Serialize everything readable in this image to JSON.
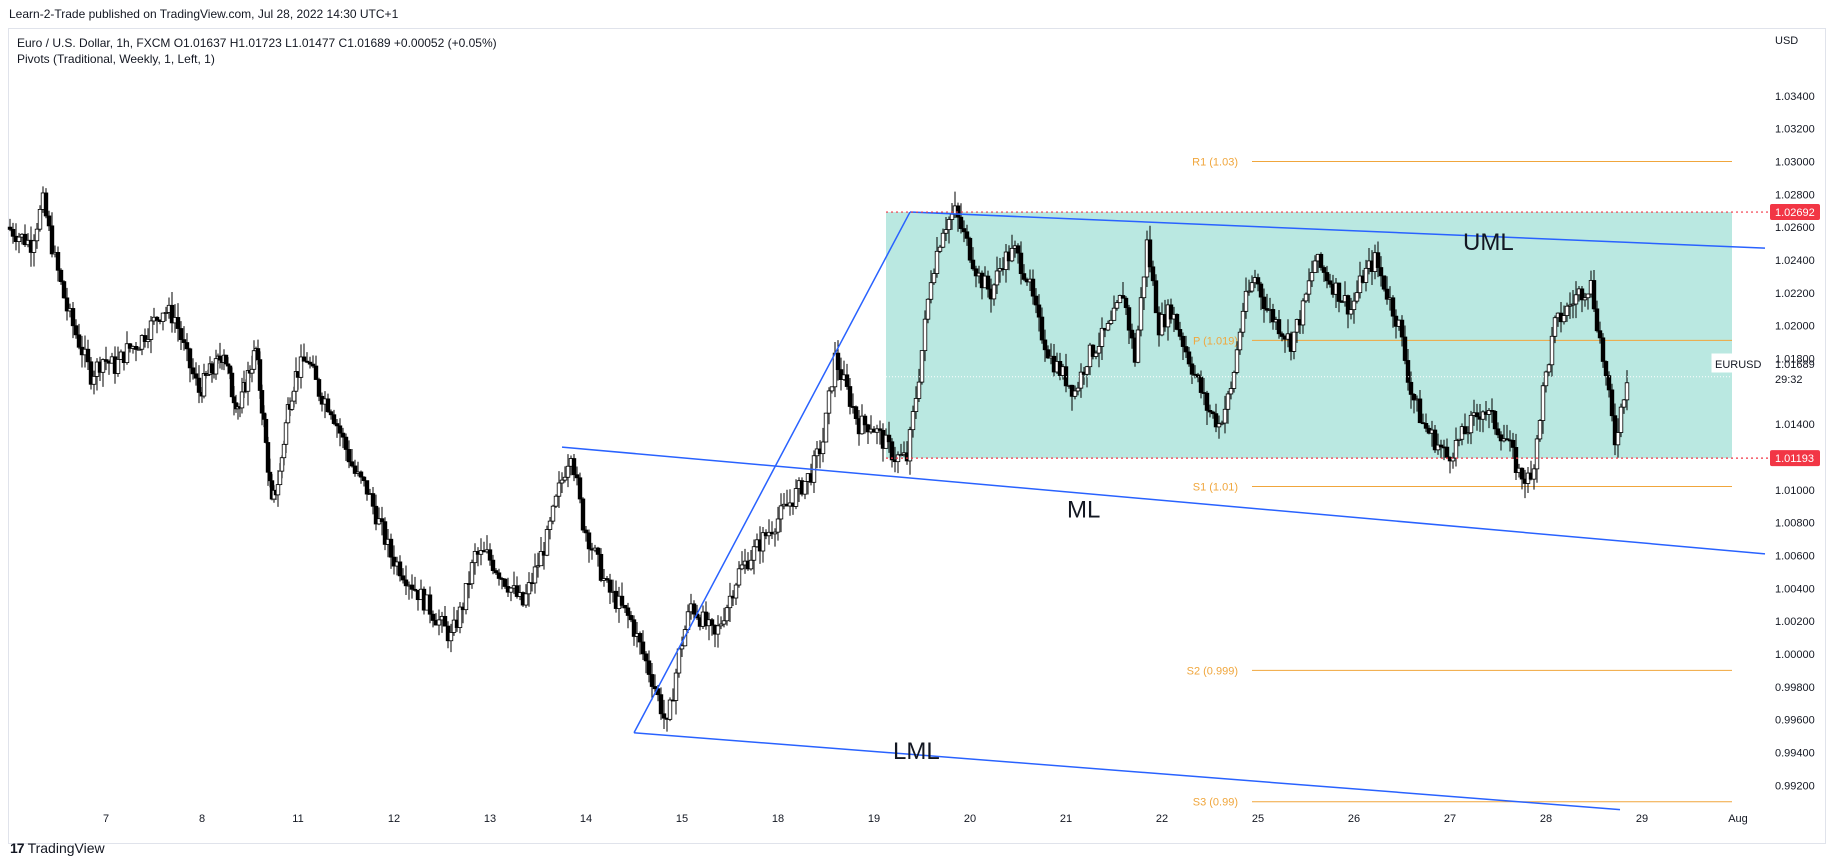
{
  "header": {
    "published": "Learn-2-Trade published on TradingView.com, Jul 28, 2022 14:30 UTC+1",
    "legend_line1": "Euro / U.S. Dollar, 1h, FXCM   O1.01637  H1.01723  L1.01477  C1.01689  +0.00052 (+0.05%)",
    "legend_line2": "Pivots (Traditional, Weekly, 1, Left, 1)",
    "brand": "TradingView"
  },
  "chart_data": {
    "type": "candlestick",
    "symbol": "EURUSD",
    "currency": "USD",
    "current_price": "1.01689",
    "countdown": "29:32",
    "ylim": [
      0.9908,
      1.0374
    ],
    "y_ticks": [
      "1.03400",
      "1.03200",
      "1.03000",
      "1.02800",
      "1.02600",
      "1.02400",
      "1.02200",
      "1.02000",
      "1.01800",
      "1.01400",
      "1.01000",
      "1.00800",
      "1.00600",
      "1.00400",
      "1.00200",
      "1.00000",
      "0.99800",
      "0.99600",
      "0.99400",
      "0.99200"
    ],
    "x_ticks": [
      "7",
      "8",
      "11",
      "12",
      "13",
      "14",
      "15",
      "18",
      "19",
      "20",
      "21",
      "22",
      "25",
      "26",
      "27",
      "28",
      "29",
      "Aug"
    ],
    "price_flags": [
      {
        "label": "1.02692",
        "value": 1.02692,
        "color": "#f23645"
      },
      {
        "label": "1.01193",
        "value": 1.01193,
        "color": "#f23645"
      }
    ],
    "pivots": [
      {
        "label": "R1 (1.03)",
        "value": 1.03
      },
      {
        "label": "P (1.019)",
        "value": 1.0191
      },
      {
        "label": "S1 (1.01)",
        "value": 1.0102
      },
      {
        "label": "S2 (0.999)",
        "value": 0.999
      },
      {
        "label": "S3 (0.99)",
        "value": 0.991
      }
    ],
    "channel_labels": [
      "UML",
      "ML",
      "LML"
    ],
    "range_box": {
      "top": 1.02692,
      "bottom": 1.01193,
      "from": "Jul 19",
      "to": "Jul 29",
      "color": "#b2e6de"
    },
    "colors": {
      "candle": "#000000",
      "pitchfork": "#2962ff",
      "pivot": "#f0a63c",
      "grid": "#f0f3fa"
    },
    "price_path": [
      {
        "d": "Jul 6",
        "v": [
          1.026,
          1.0255,
          1.025,
          1.0275
        ]
      },
      {
        "d": "Jul 6",
        "v": [
          1.024,
          1.021,
          1.019,
          1.017
        ]
      },
      {
        "d": "Jul 7",
        "v": [
          1.018,
          1.0175,
          1.0185,
          1.019
        ]
      },
      {
        "d": "Jul 7",
        "v": [
          1.02,
          1.021,
          1.0205,
          1.018
        ]
      },
      {
        "d": "Jul 8",
        "v": [
          1.016,
          1.017,
          1.0175,
          1.0185
        ]
      },
      {
        "d": "Jul 8",
        "v": [
          1.016,
          1.015,
          1.017,
          1.0185
        ]
      },
      {
        "d": "Jul 8",
        "v": [
          1.014,
          1.009,
          1.011,
          1.015
        ]
      },
      {
        "d": "Jul 11",
        "v": [
          1.017,
          1.018,
          1.016,
          1.015
        ]
      },
      {
        "d": "Jul 11",
        "v": [
          1.013,
          1.011,
          1.01,
          1.008
        ]
      },
      {
        "d": "Jul 12",
        "v": [
          1.006,
          1.005,
          1.004,
          1.003
        ]
      },
      {
        "d": "Jul 12",
        "v": [
          1.002,
          1.001,
          1.003,
          1.006
        ]
      },
      {
        "d": "Jul 13",
        "v": [
          1.006,
          1.005,
          1.004,
          1.003
        ]
      },
      {
        "d": "Jul 13",
        "v": [
          1.005,
          1.007,
          1.01,
          1.0125
        ]
      },
      {
        "d": "Jul 14",
        "v": [
          1.008,
          1.006,
          1.004,
          1.003
        ]
      },
      {
        "d": "Jul 14",
        "v": [
          1.002,
          1.0,
          0.998,
          0.9955
        ]
      },
      {
        "d": "Jul 15",
        "v": [
          1.0,
          1.003,
          1.002,
          1.001
        ]
      },
      {
        "d": "Jul 15",
        "v": [
          1.003,
          1.005,
          1.006,
          1.007
        ]
      },
      {
        "d": "Jul 18",
        "v": [
          1.008,
          1.009,
          1.01,
          1.011
        ]
      },
      {
        "d": "Jul 18",
        "v": [
          1.013,
          1.018,
          1.016,
          1.014
        ]
      },
      {
        "d": "Jul 19",
        "v": [
          1.014,
          1.013,
          1.012,
          1.0119
        ]
      },
      {
        "d": "Jul 19",
        "v": [
          1.017,
          1.023,
          1.026,
          1.0269
        ]
      },
      {
        "d": "Jul 20",
        "v": [
          1.025,
          1.023,
          1.022,
          1.024
        ]
      },
      {
        "d": "Jul 20",
        "v": [
          1.0245,
          1.023,
          1.02,
          1.018
        ]
      },
      {
        "d": "Jul 21",
        "v": [
          1.017,
          1.016,
          1.018,
          1.019
        ]
      },
      {
        "d": "Jul 21",
        "v": [
          1.02,
          1.022,
          1.018,
          1.025
        ]
      },
      {
        "d": "Jul 22",
        "v": [
          1.02,
          1.021,
          1.019,
          1.017
        ]
      },
      {
        "d": "Jul 22",
        "v": [
          1.015,
          1.014,
          1.016,
          1.021
        ]
      },
      {
        "d": "Jul 25",
        "v": [
          1.023,
          1.021,
          1.02,
          1.019
        ]
      },
      {
        "d": "Jul 25",
        "v": [
          1.021,
          1.024,
          1.023,
          1.022
        ]
      },
      {
        "d": "Jul 26",
        "v": [
          1.021,
          1.023,
          1.024,
          1.022
        ]
      },
      {
        "d": "Jul 26",
        "v": [
          1.02,
          1.016,
          1.014,
          1.013
        ]
      },
      {
        "d": "Jul 27",
        "v": [
          1.012,
          1.013,
          1.014,
          1.015
        ]
      },
      {
        "d": "Jul 27",
        "v": [
          1.014,
          1.013,
          1.011,
          1.0105
        ]
      },
      {
        "d": "Jul 28",
        "v": [
          1.016,
          1.02,
          1.021,
          1.022
        ]
      },
      {
        "d": "Jul 28",
        "v": [
          1.0225,
          1.018,
          1.013,
          1.0169
        ]
      }
    ]
  }
}
